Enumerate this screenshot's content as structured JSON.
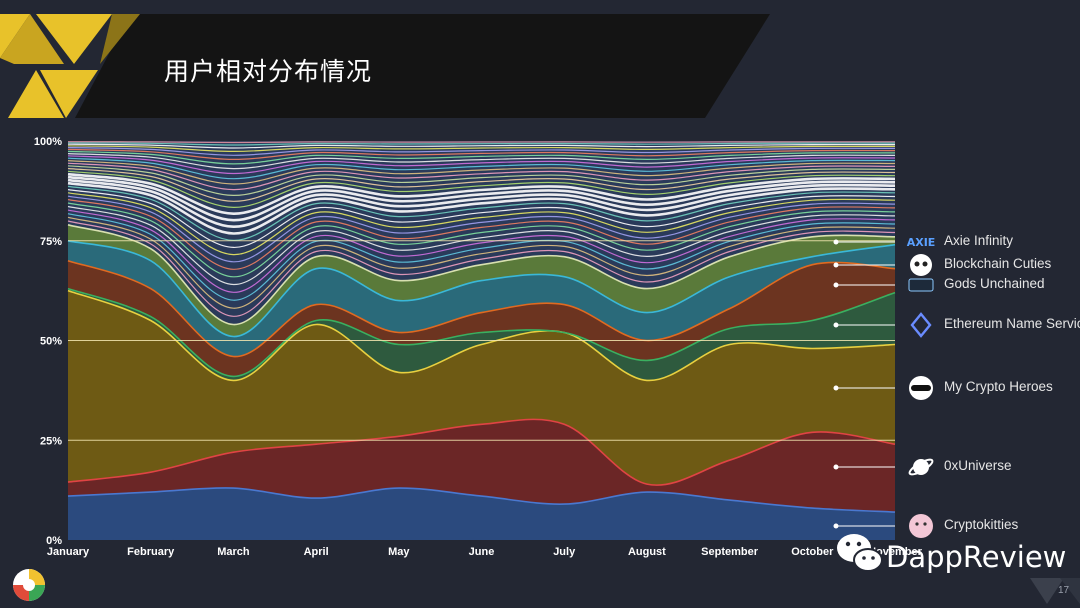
{
  "slide": {
    "title": "用户相对分布情况",
    "page_number": "17",
    "watermark": "DappReview"
  },
  "colors": {
    "background": "#232733",
    "banner": "#151515",
    "accent": "#e8c22a",
    "cryptokitties": "#2b4a7e",
    "oxuniverse": "#6b2626",
    "my_crypto_heroes": "#6e5a14",
    "ethereum_name_service": "#2e5a3e",
    "gods_unchained": "#6c3420",
    "blockchain_cuties": "#2a6a7a",
    "axie_infinity": "#5a7a3a"
  },
  "chart_data": {
    "type": "area",
    "stacked": true,
    "normalized": true,
    "x": [
      "January",
      "February",
      "March",
      "April",
      "May",
      "June",
      "July",
      "August",
      "September",
      "October",
      "November"
    ],
    "y_ticks": [
      "0%",
      "25%",
      "50%",
      "75%",
      "100%"
    ],
    "ylim": [
      0,
      100
    ],
    "grid": "horizontal",
    "legend_position": "right",
    "series": [
      {
        "name": "Cryptokitties",
        "icon": "cat-icon",
        "values": [
          11,
          12,
          13,
          10.5,
          13,
          11,
          9,
          12,
          10,
          8,
          7
        ]
      },
      {
        "name": "0xUniverse",
        "icon": "planet-icon",
        "values": [
          3.5,
          5,
          9,
          13.5,
          13,
          18,
          20,
          2,
          10,
          19,
          17
        ]
      },
      {
        "name": "My Crypto Heroes",
        "icon": "helmet-icon",
        "values": [
          48,
          38,
          18,
          30,
          16,
          20,
          23,
          26,
          29,
          21,
          25
        ]
      },
      {
        "name": "Ethereum Name Service",
        "icon": "diamond-icon",
        "values": [
          0.5,
          1,
          1,
          1,
          7,
          3,
          0,
          5,
          4,
          7,
          13
        ]
      },
      {
        "name": "Gods Unchained",
        "icon": "shield-icon",
        "values": [
          7,
          7,
          5,
          4,
          3,
          5,
          7,
          5,
          5,
          14,
          6
        ]
      },
      {
        "name": "Blockchain Cuties",
        "icon": "panda-icon",
        "values": [
          5,
          7,
          5,
          9,
          8,
          8,
          7,
          7,
          8,
          2,
          6
        ]
      },
      {
        "name": "Axie Infinity",
        "icon": "axie-logo-icon",
        "values": [
          4,
          3,
          3,
          3,
          5,
          4,
          5,
          6,
          5,
          5,
          2
        ]
      }
    ]
  }
}
